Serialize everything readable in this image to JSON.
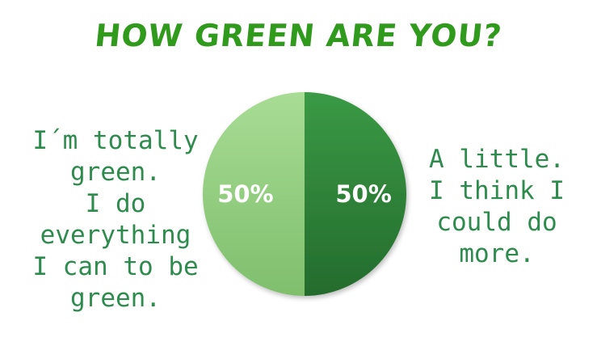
{
  "chart_data": {
    "type": "pie",
    "title": "HOW GREEN ARE YOU?",
    "slices": [
      {
        "label": "I´m totally green.\nI do everything\nI can to be green.",
        "value": 50,
        "display": "50%",
        "color": "#9bd48a"
      },
      {
        "label": "A little.\nI think I\ncould do\nmore.",
        "value": 50,
        "display": "50%",
        "color": "#2e8a3a"
      }
    ]
  },
  "colors": {
    "title": "#2f9a1c",
    "label_text": "#2e8b4e"
  }
}
